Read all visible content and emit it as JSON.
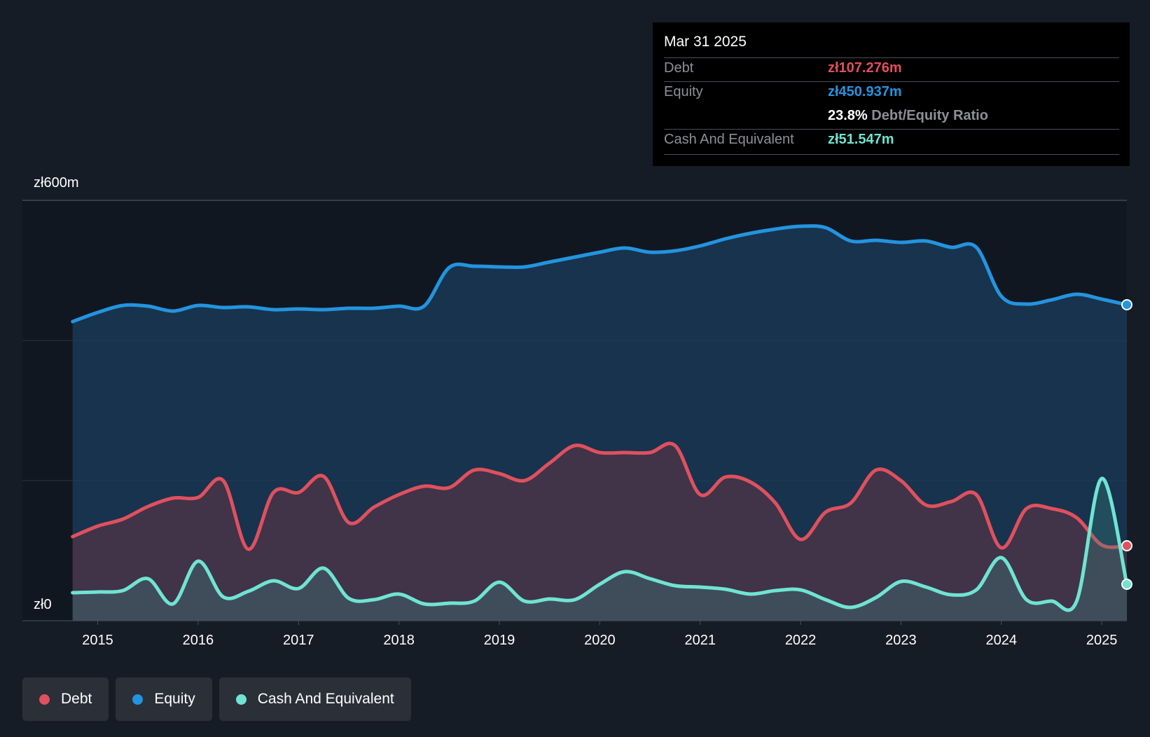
{
  "tooltip": {
    "date": "Mar 31 2025",
    "debt_label": "Debt",
    "debt_value": "zł107.276m",
    "equity_label": "Equity",
    "equity_value": "zł450.937m",
    "ratio_value": "23.8%",
    "ratio_label": "Debt/Equity Ratio",
    "cash_label": "Cash And Equivalent",
    "cash_value": "zł51.547m"
  },
  "colors": {
    "background": "#161c25",
    "plot_background": "#111721",
    "debt": "#e0505e",
    "equity": "#2394df",
    "cash": "#6fe4d2"
  },
  "legend": [
    {
      "label": "Debt",
      "color": "#e0505e"
    },
    {
      "label": "Equity",
      "color": "#2394df"
    },
    {
      "label": "Cash And Equivalent",
      "color": "#6fe4d2"
    }
  ],
  "chart_data": {
    "type": "area",
    "title": "",
    "xlabel": "",
    "ylabel": "",
    "y_axis_labels": {
      "top": "zł600m",
      "bottom": "zł0"
    },
    "ylim": [
      0,
      600
    ],
    "xlim": [
      2014.25,
      2025.25
    ],
    "x_ticks": [
      "2015",
      "2016",
      "2017",
      "2018",
      "2019",
      "2020",
      "2021",
      "2022",
      "2023",
      "2024",
      "2025"
    ],
    "gridlines": [
      0,
      200,
      400,
      600
    ],
    "series": [
      {
        "name": "Equity",
        "points": [
          [
            2014.75,
            427
          ],
          [
            2015.0,
            440
          ],
          [
            2015.25,
            450
          ],
          [
            2015.5,
            449
          ],
          [
            2015.75,
            442
          ],
          [
            2016.0,
            450
          ],
          [
            2016.25,
            447
          ],
          [
            2016.5,
            448
          ],
          [
            2016.75,
            444
          ],
          [
            2017.0,
            445
          ],
          [
            2017.25,
            444
          ],
          [
            2017.5,
            446
          ],
          [
            2017.75,
            446
          ],
          [
            2018.0,
            449
          ],
          [
            2018.25,
            449
          ],
          [
            2018.5,
            504
          ],
          [
            2018.75,
            506
          ],
          [
            2019.0,
            505
          ],
          [
            2019.25,
            505
          ],
          [
            2019.5,
            512
          ],
          [
            2019.75,
            519
          ],
          [
            2020.0,
            526
          ],
          [
            2020.25,
            532
          ],
          [
            2020.5,
            526
          ],
          [
            2020.75,
            528
          ],
          [
            2021.0,
            535
          ],
          [
            2021.25,
            545
          ],
          [
            2021.5,
            553
          ],
          [
            2021.75,
            559
          ],
          [
            2022.0,
            563
          ],
          [
            2022.25,
            561
          ],
          [
            2022.5,
            542
          ],
          [
            2022.75,
            543
          ],
          [
            2023.0,
            540
          ],
          [
            2023.25,
            542
          ],
          [
            2023.5,
            533
          ],
          [
            2023.75,
            533
          ],
          [
            2024.0,
            463
          ],
          [
            2024.25,
            452
          ],
          [
            2024.5,
            458
          ],
          [
            2024.75,
            466
          ],
          [
            2025.0,
            459
          ],
          [
            2025.25,
            451
          ]
        ]
      },
      {
        "name": "Debt",
        "points": [
          [
            2014.75,
            120
          ],
          [
            2015.0,
            135
          ],
          [
            2015.25,
            145
          ],
          [
            2015.5,
            163
          ],
          [
            2015.75,
            175
          ],
          [
            2016.0,
            176
          ],
          [
            2016.25,
            200
          ],
          [
            2016.5,
            102
          ],
          [
            2016.75,
            183
          ],
          [
            2017.0,
            183
          ],
          [
            2017.25,
            206
          ],
          [
            2017.5,
            140
          ],
          [
            2017.75,
            162
          ],
          [
            2018.0,
            180
          ],
          [
            2018.25,
            192
          ],
          [
            2018.5,
            190
          ],
          [
            2018.75,
            215
          ],
          [
            2019.0,
            210
          ],
          [
            2019.25,
            200
          ],
          [
            2019.5,
            225
          ],
          [
            2019.75,
            250
          ],
          [
            2020.0,
            240
          ],
          [
            2020.25,
            240
          ],
          [
            2020.5,
            240
          ],
          [
            2020.75,
            250
          ],
          [
            2021.0,
            180
          ],
          [
            2021.25,
            205
          ],
          [
            2021.5,
            198
          ],
          [
            2021.75,
            168
          ],
          [
            2022.0,
            116
          ],
          [
            2022.25,
            155
          ],
          [
            2022.5,
            168
          ],
          [
            2022.75,
            215
          ],
          [
            2023.0,
            200
          ],
          [
            2023.25,
            165
          ],
          [
            2023.5,
            170
          ],
          [
            2023.75,
            180
          ],
          [
            2024.0,
            104
          ],
          [
            2024.25,
            160
          ],
          [
            2024.5,
            160
          ],
          [
            2024.75,
            147
          ],
          [
            2025.0,
            108
          ],
          [
            2025.25,
            107
          ]
        ]
      },
      {
        "name": "Cash And Equivalent",
        "points": [
          [
            2014.75,
            40
          ],
          [
            2015.0,
            41
          ],
          [
            2015.25,
            43
          ],
          [
            2015.5,
            60
          ],
          [
            2015.75,
            24
          ],
          [
            2016.0,
            85
          ],
          [
            2016.25,
            34
          ],
          [
            2016.5,
            42
          ],
          [
            2016.75,
            57
          ],
          [
            2017.0,
            46
          ],
          [
            2017.25,
            75
          ],
          [
            2017.5,
            32
          ],
          [
            2017.75,
            30
          ],
          [
            2018.0,
            38
          ],
          [
            2018.25,
            24
          ],
          [
            2018.5,
            25
          ],
          [
            2018.75,
            28
          ],
          [
            2019.0,
            55
          ],
          [
            2019.25,
            28
          ],
          [
            2019.5,
            31
          ],
          [
            2019.75,
            30
          ],
          [
            2020.0,
            52
          ],
          [
            2020.25,
            70
          ],
          [
            2020.5,
            60
          ],
          [
            2020.75,
            50
          ],
          [
            2021.0,
            48
          ],
          [
            2021.25,
            45
          ],
          [
            2021.5,
            38
          ],
          [
            2021.75,
            43
          ],
          [
            2022.0,
            44
          ],
          [
            2022.25,
            30
          ],
          [
            2022.5,
            19
          ],
          [
            2022.75,
            33
          ],
          [
            2023.0,
            56
          ],
          [
            2023.25,
            48
          ],
          [
            2023.5,
            37
          ],
          [
            2023.75,
            44
          ],
          [
            2024.0,
            90
          ],
          [
            2024.25,
            30
          ],
          [
            2024.5,
            28
          ],
          [
            2024.75,
            28
          ],
          [
            2025.0,
            203
          ],
          [
            2025.25,
            52
          ]
        ]
      }
    ]
  }
}
